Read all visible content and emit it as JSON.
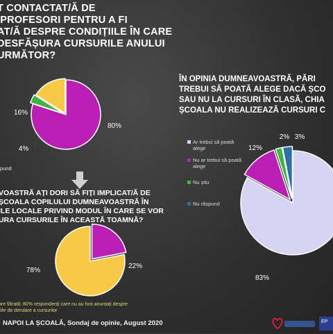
{
  "q1": {
    "lines": [
      "T CONTACTAT/Ă DE",
      "/PROFESORI PENTRU A FI",
      "AT/Ă DESPRE CONDIȚIILE ÎN CARE",
      "DESFĂȘURA CURSURILE ANULUI",
      "URMĂTOR?"
    ]
  },
  "q2": {
    "lines": [
      "VOASTRĂ AȚI DORI SĂ FIȚI IMPLICAT/Ă DE",
      "ȘCOALA COPILULUI DUMNEAVOASTRĂ ÎN",
      "ILE LOCALE PRIVIND MODUL ÎN CARE SE VOR",
      "URA CURSURILE ÎN ACEASTĂ TOAMNĂ?"
    ]
  },
  "q3": {
    "lines": [
      "ÎN OPINIA DUMNEAVOASTRĂ, PĂRI",
      "TREBUI SĂ POATĂ ALEGE DACĂ ȘCO",
      "SAU NU LA CURSURI ÎN CLASĂ, CHIA",
      "ȘCOALA NU REALIZEAZĂ CURSURI C"
    ]
  },
  "partial_legend_left": "pund",
  "note_lines": [
    "are filtrată: 80% respondenți care nu au fost anunțați despre",
    "țiile de derulare a cursurilor"
  ],
  "footer": "NAPOI LA ȘCOALĂ, Sondaj de opinie, August 2020",
  "logo_text": "EP",
  "chart_data": [
    {
      "type": "pie",
      "title": "",
      "slices": [
        {
          "label": "",
          "value": 80,
          "text": "80%",
          "color": "#b81fb2"
        },
        {
          "label": "",
          "value": 4,
          "text": "4%",
          "color": "#3fb53f"
        },
        {
          "label": "",
          "value": 16,
          "text": "16%",
          "color": "#f7c946"
        }
      ]
    },
    {
      "type": "pie",
      "title": "",
      "slices": [
        {
          "label": "",
          "value": 22,
          "text": "22%",
          "color": "#b81fb2"
        },
        {
          "label": "",
          "value": 78,
          "text": "78%",
          "color": "#f7c946"
        }
      ]
    },
    {
      "type": "pie",
      "title": "",
      "legend_position": "left",
      "slices": [
        {
          "label": "Ar trebui să poată alege",
          "value": 83,
          "text": "83%",
          "color": "#d7d3f3"
        },
        {
          "label": "Nu ar trebui să poată alege",
          "value": 12,
          "text": "12%",
          "color": "#b81fb2"
        },
        {
          "label": "Nu știu",
          "value": 2,
          "text": "2%",
          "color": "#3fb53f"
        },
        {
          "label": "Nu răspund",
          "value": 3,
          "text": "3%",
          "color": "#2f6fa8"
        }
      ]
    }
  ]
}
